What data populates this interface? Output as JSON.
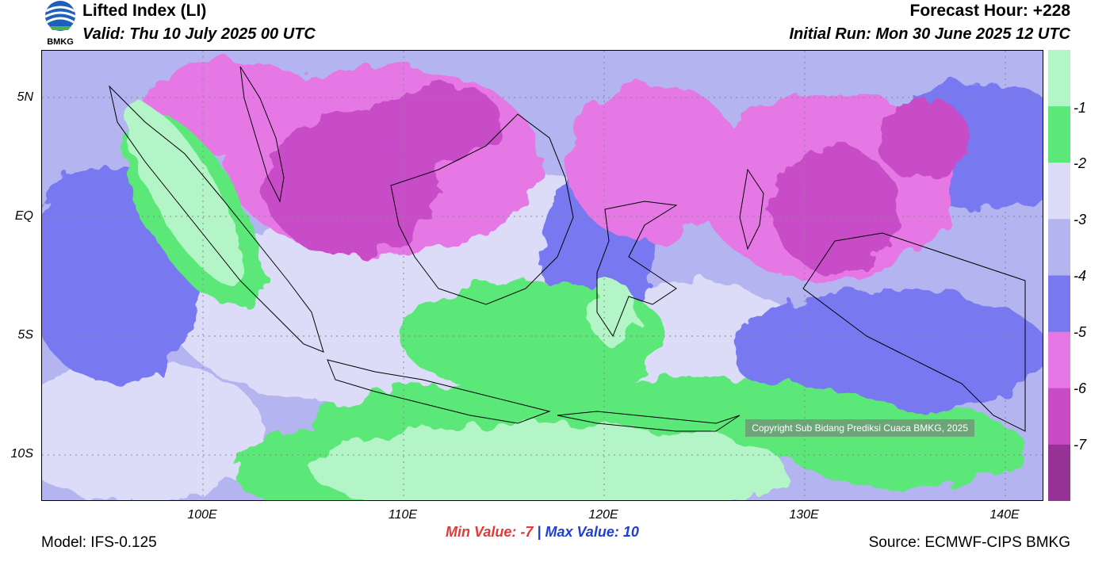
{
  "header": {
    "title": "Lifted Index (LI)",
    "valid": "Valid: Thu 10 July 2025 00 UTC",
    "forecast_hour": "Forecast Hour: +228",
    "initial_run": "Initial Run: Mon 30 June 2025 12 UTC"
  },
  "logo": {
    "text": "BMKG"
  },
  "axes": {
    "lat_labels": [
      "5N",
      "EQ",
      "5S",
      "10S"
    ],
    "lon_labels": [
      "100E",
      "110E",
      "120E",
      "130E",
      "140E"
    ]
  },
  "colorbar": {
    "labels": [
      "-1",
      "-2",
      "-3",
      "-4",
      "-5",
      "-6",
      "-7"
    ],
    "colors": [
      "#b4f5c8",
      "#5ce879",
      "#dcdcf8",
      "#b4b4f0",
      "#7878f0",
      "#e678e6",
      "#c84bc8",
      "#963296"
    ]
  },
  "stats": {
    "min_label": "Min Value:",
    "min_value": "-7",
    "separator": "|",
    "max_label": "Max Value:",
    "max_value": "10"
  },
  "footer": {
    "model": "Model: IFS-0.125",
    "source": "Source: ECMWF-CIPS BMKG",
    "copyright": "Copyright Sub Bidang Prediksi Cuaca BMKG, 2025"
  }
}
